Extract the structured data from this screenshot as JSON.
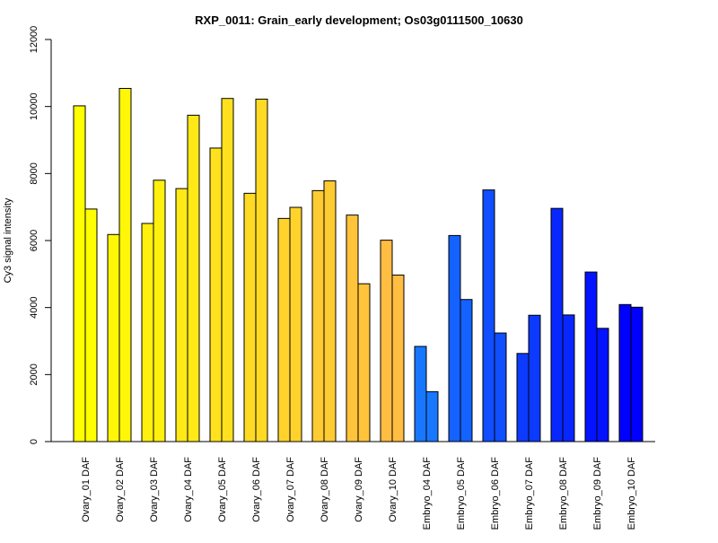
{
  "chart_data": {
    "type": "bar",
    "title": "RXP_0011: Grain_early development; Os03g0111500_10630",
    "xlabel": "",
    "ylabel": "Cy3 signal intensity",
    "ylim": [
      0,
      12000
    ],
    "yticks": [
      0,
      2000,
      4000,
      6000,
      8000,
      10000,
      12000
    ],
    "ytick_labels": [
      "0",
      "2000",
      "4000",
      "6000",
      "8000",
      "10000",
      "12000"
    ],
    "grid": false,
    "legend": "none",
    "bars_per_group": 2,
    "groups": [
      {
        "label": "Ovary_01 DAF",
        "values": [
          10020,
          6940
        ],
        "color": "#FFFF00"
      },
      {
        "label": "Ovary_02 DAF",
        "values": [
          6180,
          10540
        ],
        "color": "#FFF707"
      },
      {
        "label": "Ovary_03 DAF",
        "values": [
          6510,
          7800
        ],
        "color": "#FFF00E"
      },
      {
        "label": "Ovary_04 DAF",
        "values": [
          7550,
          9740
        ],
        "color": "#FFE916"
      },
      {
        "label": "Ovary_05 DAF",
        "values": [
          8760,
          10240
        ],
        "color": "#FFE11D"
      },
      {
        "label": "Ovary_06 DAF",
        "values": [
          7410,
          10220
        ],
        "color": "#FFDA24"
      },
      {
        "label": "Ovary_07 DAF",
        "values": [
          6660,
          6990
        ],
        "color": "#FFD32B"
      },
      {
        "label": "Ovary_08 DAF",
        "values": [
          7490,
          7780
        ],
        "color": "#FFCB32"
      },
      {
        "label": "Ovary_09 DAF",
        "values": [
          6760,
          4710
        ],
        "color": "#FFC439"
      },
      {
        "label": "Ovary_10 DAF",
        "values": [
          6010,
          4970
        ],
        "color": "#FFBD41"
      },
      {
        "label": "Embryo_04 DAF",
        "values": [
          2840,
          1490
        ],
        "color": "#1877FF"
      },
      {
        "label": "Embryo_05 DAF",
        "values": [
          6150,
          4240
        ],
        "color": "#1462FF"
      },
      {
        "label": "Embryo_06 DAF",
        "values": [
          7510,
          3240
        ],
        "color": "#104EFF"
      },
      {
        "label": "Embryo_07 DAF",
        "values": [
          2630,
          3770
        ],
        "color": "#0C3BFF"
      },
      {
        "label": "Embryo_08 DAF",
        "values": [
          6960,
          3780
        ],
        "color": "#0827FF"
      },
      {
        "label": "Embryo_09 DAF",
        "values": [
          5060,
          3380
        ],
        "color": "#0413FF"
      },
      {
        "label": "Embryo_10 DAF",
        "values": [
          4090,
          4010
        ],
        "color": "#0000FF"
      }
    ]
  }
}
